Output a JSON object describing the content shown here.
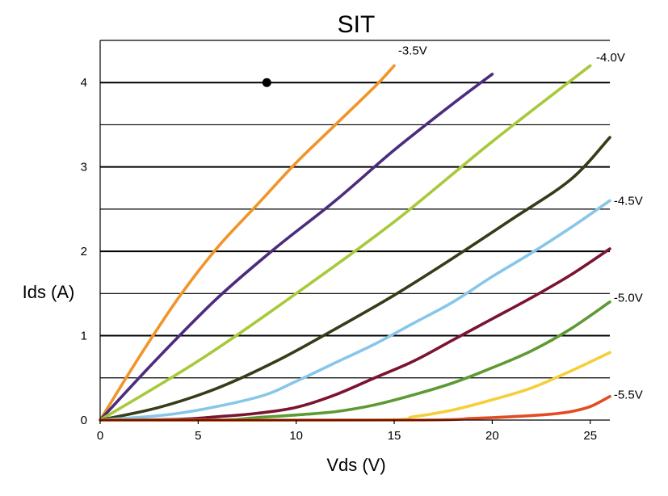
{
  "chart_data": {
    "type": "line",
    "title": "SIT",
    "xlabel": "Vds (V)",
    "ylabel": "Ids (A)",
    "xlim": [
      0,
      26
    ],
    "ylim": [
      0,
      4.5
    ],
    "xticks": [
      0,
      5,
      10,
      15,
      20,
      25
    ],
    "yticks": [
      0,
      1,
      2,
      3,
      4
    ],
    "y_gridlines": [
      0.5,
      1,
      1.5,
      2,
      2.5,
      3,
      3.5,
      4,
      4.5
    ],
    "grid": "horizontal",
    "legend": "none",
    "series": [
      {
        "color": "#f0952a",
        "x": [
          0,
          2,
          4,
          6,
          8,
          10,
          12,
          14,
          15
        ],
        "y": [
          0,
          0.75,
          1.45,
          2.05,
          2.55,
          3.05,
          3.5,
          3.95,
          4.2
        ]
      },
      {
        "color": "#4b2c7e",
        "x": [
          0,
          3,
          6,
          9,
          12,
          15,
          18,
          20
        ],
        "y": [
          0,
          0.75,
          1.45,
          2.05,
          2.6,
          3.2,
          3.75,
          4.1
        ]
      },
      {
        "color": "#a7c93a",
        "x": [
          0,
          5,
          10,
          15,
          20,
          25
        ],
        "y": [
          0,
          0.7,
          1.5,
          2.35,
          3.3,
          4.2
        ]
      },
      {
        "color": "#343d18",
        "x": [
          0,
          3,
          6,
          9,
          12,
          15,
          18,
          21,
          24,
          26
        ],
        "y": [
          0,
          0.15,
          0.38,
          0.7,
          1.08,
          1.48,
          1.92,
          2.38,
          2.85,
          3.35
        ]
      },
      {
        "color": "#88c6e9",
        "x": [
          0,
          4,
          8,
          10,
          12,
          14,
          16,
          18,
          20,
          22,
          24,
          26
        ],
        "y": [
          0,
          0.08,
          0.27,
          0.46,
          0.68,
          0.9,
          1.15,
          1.4,
          1.7,
          1.98,
          2.28,
          2.6
        ]
      },
      {
        "color": "#7b1430",
        "x": [
          0,
          4,
          6,
          8,
          10,
          12,
          14,
          16,
          18,
          20,
          22,
          24,
          26
        ],
        "y": [
          0,
          0.01,
          0.04,
          0.08,
          0.15,
          0.3,
          0.5,
          0.7,
          0.95,
          1.2,
          1.45,
          1.72,
          2.03
        ]
      },
      {
        "color": "#5e9a34",
        "x": [
          0,
          6,
          8,
          10,
          12,
          14,
          16,
          18,
          20,
          22,
          24,
          26
        ],
        "y": [
          0,
          0.0,
          0.03,
          0.06,
          0.1,
          0.18,
          0.3,
          0.44,
          0.62,
          0.82,
          1.08,
          1.4
        ]
      },
      {
        "color": "#f4cf3a",
        "x": [
          0,
          14,
          16,
          18,
          20,
          22,
          24,
          26
        ],
        "y": [
          0,
          0.0,
          0.04,
          0.12,
          0.24,
          0.38,
          0.58,
          0.8
        ]
      },
      {
        "color": "#e24c22",
        "x": [
          0,
          16,
          19,
          21,
          23,
          24,
          25,
          26
        ],
        "y": [
          0,
          0.0,
          0.02,
          0.04,
          0.07,
          0.1,
          0.16,
          0.28
        ]
      }
    ],
    "point": {
      "x": 8.5,
      "y": 4.0,
      "color": "#000000"
    },
    "annotations": [
      {
        "text": "-3.5V",
        "x": 15.2,
        "y": 4.38
      },
      {
        "text": "-4.0V",
        "x": 25.3,
        "y": 4.3
      },
      {
        "text": "-4.5V",
        "x": 26.2,
        "y": 2.6
      },
      {
        "text": "-5.0V",
        "x": 26.2,
        "y": 1.45
      },
      {
        "text": "-5.5V",
        "x": 26.2,
        "y": 0.3
      }
    ]
  }
}
